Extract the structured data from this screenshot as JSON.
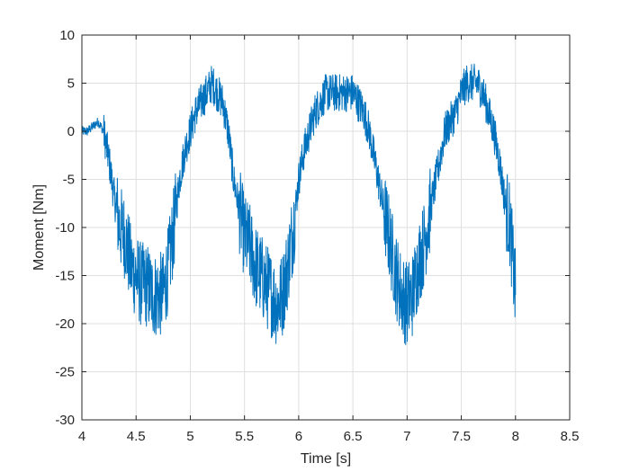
{
  "chart_data": {
    "type": "line",
    "title": "",
    "xlabel": "Time [s]",
    "ylabel": "Moment [Nm]",
    "xlim": [
      4,
      8.5
    ],
    "ylim": [
      -30,
      10
    ],
    "xticks": [
      4,
      4.5,
      5,
      5.5,
      6,
      6.5,
      7,
      7.5,
      8,
      8.5
    ],
    "yticks": [
      -30,
      -25,
      -20,
      -15,
      -10,
      -5,
      0,
      5,
      10
    ],
    "xtick_labels": [
      "4",
      "4.5",
      "5",
      "5.5",
      "6",
      "6.5",
      "7",
      "7.5",
      "8",
      "8.5"
    ],
    "ytick_labels": [
      "-30",
      "-25",
      "-20",
      "-15",
      "-10",
      "-5",
      "0",
      "5",
      "10"
    ],
    "grid": true,
    "legend": false,
    "line_color": "#0072BD",
    "series": [
      {
        "x": [
          4.0,
          4.05,
          4.1,
          4.15,
          4.2,
          4.25,
          4.3,
          4.35,
          4.4,
          4.45,
          4.5,
          4.55,
          4.6,
          4.65,
          4.7,
          4.75,
          4.8,
          4.85,
          4.9,
          4.95,
          5.0,
          5.05,
          5.1,
          5.15,
          5.2,
          5.25,
          5.3,
          5.35,
          5.4,
          5.45,
          5.5,
          5.55,
          5.6,
          5.65,
          5.7,
          5.75,
          5.8,
          5.85,
          5.9,
          5.95,
          6.0,
          6.05,
          6.1,
          6.15,
          6.2,
          6.25,
          6.3,
          6.35,
          6.4,
          6.45,
          6.5,
          6.55,
          6.6,
          6.65,
          6.7,
          6.75,
          6.8,
          6.85,
          6.9,
          6.95,
          7.0,
          7.05,
          7.1,
          7.15,
          7.2,
          7.25,
          7.3,
          7.35,
          7.4,
          7.45,
          7.5,
          7.55,
          7.6,
          7.65,
          7.7,
          7.75,
          7.8,
          7.85,
          7.9,
          7.95,
          8.0
        ],
        "y": [
          0,
          0,
          0.5,
          1,
          0,
          -3,
          -7,
          -10,
          -11,
          -14,
          -15,
          -16,
          -16,
          -17,
          -17,
          -17,
          -14,
          -10,
          -5,
          -2,
          0,
          2,
          3,
          4,
          5,
          4,
          3,
          0,
          -5,
          -8,
          -11,
          -12,
          -14,
          -15,
          -16,
          -17,
          -18,
          -17,
          -14,
          -10,
          -5,
          -2,
          0,
          2,
          3,
          4,
          4,
          4,
          4,
          4,
          4,
          3,
          2,
          0,
          -3,
          -6,
          -9,
          -12,
          -15,
          -17,
          -18,
          -17,
          -14,
          -12,
          -9,
          -6,
          -3,
          0,
          1,
          2,
          4,
          5,
          5,
          5,
          4,
          2,
          0,
          -3,
          -7,
          -10,
          -17
        ]
      }
    ]
  }
}
